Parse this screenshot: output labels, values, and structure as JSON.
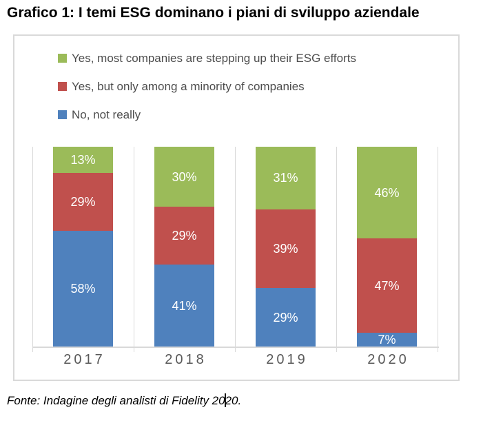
{
  "page": {
    "title": "Grafico 1: I temi ESG dominano i piani di sviluppo aziendale",
    "source": {
      "before_cursor": "Fonte: Indagine degli analisti di Fidelity 20",
      "after_cursor": "20."
    }
  },
  "chart_data": {
    "type": "bar",
    "stacking": "percent",
    "orientation": "vertical",
    "title": "",
    "categories": [
      "2017",
      "2018",
      "2019",
      "2020"
    ],
    "series": [
      {
        "name": "Yes, most companies are stepping up their ESG efforts",
        "color": "#9BBB59",
        "values": [
          13,
          30,
          31,
          46
        ]
      },
      {
        "name": "Yes, but only among a minority of companies",
        "color": "#C0504D",
        "values": [
          29,
          29,
          39,
          47
        ]
      },
      {
        "name": "No, not really",
        "color": "#4F81BD",
        "values": [
          58,
          41,
          29,
          7
        ]
      }
    ],
    "stack_order_bottom_to_top": [
      "No, not really",
      "Yes, but only among a minority of companies",
      "Yes, most companies are stepping up their ESG efforts"
    ],
    "data_label_suffix": "%",
    "data_label_color": "#FFFFFF",
    "legend_position": "top-left",
    "legend_text_color": "#4D4D4D",
    "category_label_color": "#595959",
    "axis_line_color": "#D9D9D9",
    "chart_border_color": "#D9D9D9",
    "ylim": [
      0,
      100
    ],
    "grid": "category-separators",
    "yaxis_tick_labels": "none"
  }
}
